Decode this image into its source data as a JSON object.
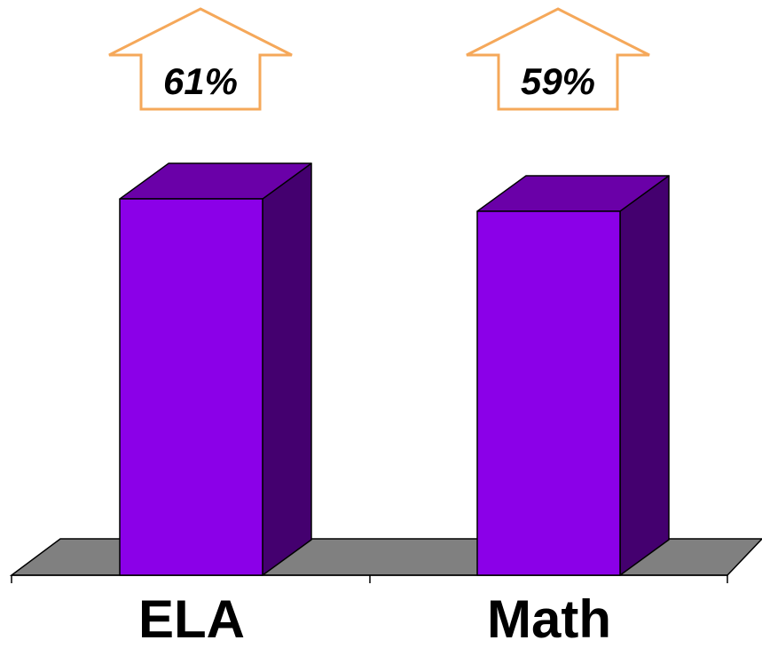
{
  "chart_data": {
    "type": "bar",
    "title": "",
    "xlabel": "",
    "ylabel": "",
    "categories": [
      "ELA",
      "Math"
    ],
    "values": [
      61,
      59
    ],
    "value_labels": [
      "61%",
      "59%"
    ],
    "ylim": [
      0,
      100
    ],
    "grid": false,
    "legend": "none"
  },
  "colors": {
    "bar_front": "#8B00E8",
    "bar_top": "#6A00A8",
    "bar_side": "#44006F",
    "floor": "#808080",
    "arrow_stroke": "#F5A85A",
    "axis": "#000000"
  },
  "icons": {
    "value_callout": "up-arrow-outline-icon"
  }
}
